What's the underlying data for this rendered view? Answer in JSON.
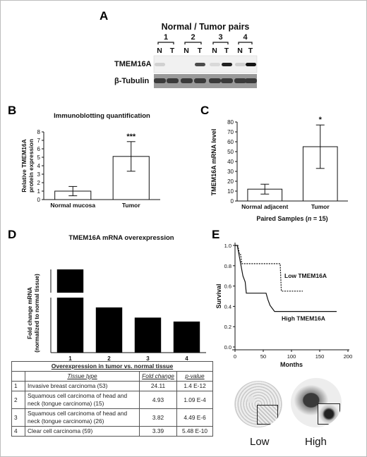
{
  "panels": {
    "A": "A",
    "B": "B",
    "C": "C",
    "D": "D",
    "E": "E"
  },
  "panel_a": {
    "title": "Normal / Tumor pairs",
    "pairs": [
      "1",
      "2",
      "3",
      "4"
    ],
    "lanes": [
      "N",
      "T",
      "N",
      "T",
      "N",
      "T",
      "N",
      "T"
    ],
    "rows": [
      "TMEM16A",
      "β-Tubulin"
    ],
    "tmem16a_band_intensity": [
      0.12,
      0.0,
      0.0,
      0.72,
      0.08,
      0.92,
      0.12,
      0.97
    ]
  },
  "chart_data": [
    {
      "panel": "B",
      "type": "bar",
      "title": "Immunoblotting quantification",
      "ylabel": "Relative TMEM16A protein expression",
      "ylabel_lines": [
        "Relative TMEM16A",
        "protein expression"
      ],
      "categories": [
        "Normal mucosa",
        "Tumor"
      ],
      "values": [
        1.0,
        5.1
      ],
      "error": [
        0.55,
        1.75
      ],
      "ylim": [
        0,
        8
      ],
      "yticks": [
        "0",
        "1",
        "2",
        "3",
        "4",
        "5",
        "6",
        "7",
        "8"
      ],
      "annotation": "***"
    },
    {
      "panel": "C",
      "type": "bar",
      "title": "",
      "ylabel": "TMEM16A mRNA level",
      "xlabel": "Paired Samples (n = 15)",
      "xlabel_parts": [
        "Paired Samples (",
        "n",
        " = 15)"
      ],
      "categories": [
        "Normal adjacent",
        "Tumor"
      ],
      "values": [
        12,
        55
      ],
      "error": [
        5,
        22
      ],
      "ylim": [
        0,
        80
      ],
      "yticks": [
        "0",
        "10",
        "20",
        "30",
        "40",
        "50",
        "60",
        "70",
        "80"
      ],
      "annotation": "*"
    },
    {
      "panel": "D",
      "type": "bar",
      "title": "TMEM16A mRNA overexpression",
      "ylabel": "Fold change mRNA (normalized to normal tissue)",
      "ylabel_lines": [
        "Fold change mRNA",
        "(normalized to normal tissue)"
      ],
      "categories": [
        "1",
        "2",
        "3",
        "4"
      ],
      "values": [
        24.11,
        4.93,
        3.82,
        3.39
      ],
      "axis_break": true
    },
    {
      "panel": "E",
      "type": "line",
      "ylabel": "Survival",
      "xlabel": "Months",
      "xticks": [
        "0",
        "50",
        "100",
        "150",
        "200"
      ],
      "yticks": [
        "0.0",
        "0.2",
        "0.4",
        "0.6",
        "0.8",
        "1.0"
      ],
      "xlim": [
        0,
        200
      ],
      "ylim": [
        0,
        1.0
      ],
      "series": [
        {
          "name": "Low TMEM16A",
          "style": "dotted",
          "x": [
            0,
            5,
            8,
            10,
            12,
            80,
            82,
            120
          ],
          "y": [
            1.0,
            1.0,
            0.91,
            0.91,
            0.82,
            0.82,
            0.55,
            0.55
          ]
        },
        {
          "name": "High TMEM16A",
          "style": "solid",
          "x": [
            0,
            4,
            6,
            8,
            10,
            12,
            14,
            18,
            20,
            55,
            58,
            62,
            70,
            180
          ],
          "y": [
            1.0,
            1.0,
            0.94,
            0.88,
            0.82,
            0.76,
            0.7,
            0.64,
            0.53,
            0.53,
            0.47,
            0.41,
            0.35,
            0.35
          ]
        }
      ]
    }
  ],
  "table": {
    "caption": "Overexpression in tumor vs. normal tissue",
    "headers": [
      "Tissue type",
      "Fold change",
      "p-value"
    ],
    "rows": [
      {
        "n": "1",
        "tissue": "Invasive breast carcinoma (53)",
        "fold": "24.11",
        "p": "1.4 E-12"
      },
      {
        "n": "2",
        "tissue": "Squamous cell carcinoma of head and neck (tongue carcinoma) (15)",
        "fold": "4.93",
        "p": "1.09 E-4"
      },
      {
        "n": "3",
        "tissue": "Squamous cell carcinoma of head and neck (tongue carcinoma) (26)",
        "fold": "3.82",
        "p": "4.49 E-6"
      },
      {
        "n": "4",
        "tissue": "Clear cell carcinoma (59)",
        "fold": "3.39",
        "p": "5.48 E-10"
      }
    ]
  },
  "ihc": {
    "low_label": "Low",
    "high_label": "High"
  }
}
